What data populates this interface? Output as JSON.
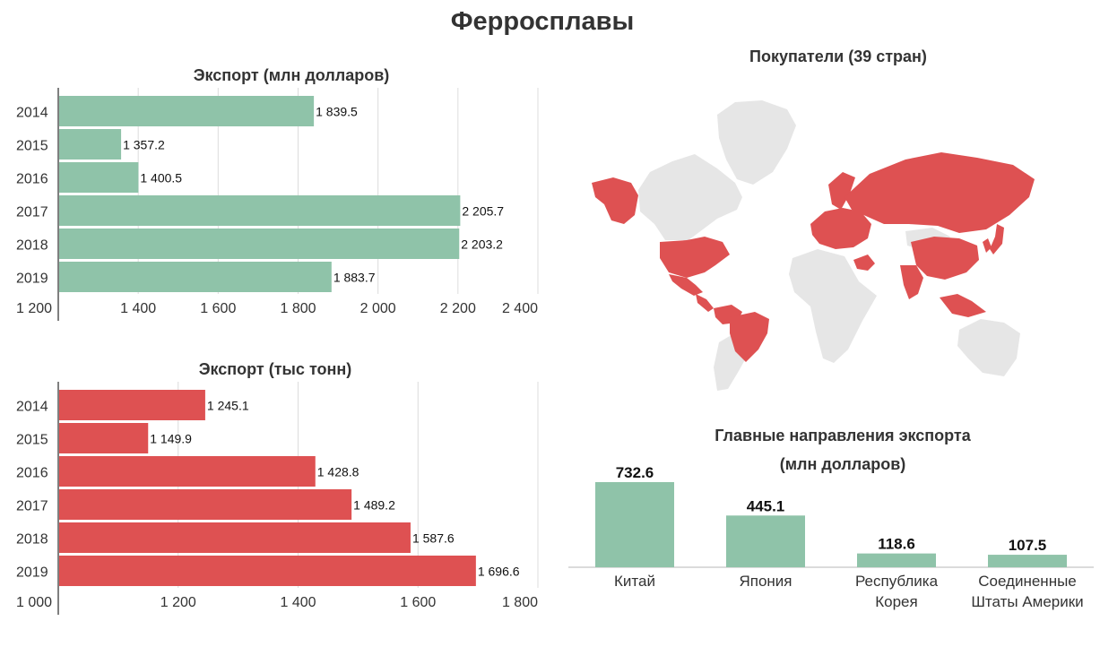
{
  "page": {
    "title": "Ферросплавы"
  },
  "colors": {
    "green": "#8fc3a9",
    "red": "#de5152",
    "land": "#e6e6e6",
    "grid": "#dcdcdc",
    "axis": "#555555"
  },
  "chart_data": [
    {
      "id": "export-value",
      "type": "bar",
      "orientation": "horizontal",
      "title": "Экспорт (млн долларов)",
      "categories": [
        "2014",
        "2015",
        "2016",
        "2017",
        "2018",
        "2019"
      ],
      "values": [
        1839.5,
        1357.2,
        1400.5,
        2205.7,
        2203.2,
        1883.7
      ],
      "value_labels": [
        "1 839.5",
        "1 357.2",
        "1 400.5",
        "2 205.7",
        "2 203.2",
        "1 883.7"
      ],
      "xlim": [
        1200,
        2400
      ],
      "xticks": [
        1200,
        1400,
        1600,
        1800,
        2000,
        2200,
        2400
      ],
      "xtick_labels": [
        "1 200",
        "1 400",
        "1 600",
        "1 800",
        "2 000",
        "2 200",
        "2 400"
      ],
      "color": "#8fc3a9",
      "grid": true
    },
    {
      "id": "export-volume",
      "type": "bar",
      "orientation": "horizontal",
      "title": "Экспорт (тыс тонн)",
      "categories": [
        "2014",
        "2015",
        "2016",
        "2017",
        "2018",
        "2019"
      ],
      "values": [
        1245.1,
        1149.9,
        1428.8,
        1489.2,
        1587.6,
        1696.6
      ],
      "value_labels": [
        "1 245.1",
        "1 149.9",
        "1 428.8",
        "1 489.2",
        "1 587.6",
        "1 696.6"
      ],
      "xlim": [
        1000,
        1800
      ],
      "xticks": [
        1000,
        1200,
        1400,
        1600,
        1800
      ],
      "xtick_labels": [
        "1 000",
        "1 200",
        "1 400",
        "1 600",
        "1 800"
      ],
      "color": "#de5152",
      "grid": true
    },
    {
      "id": "top-destinations",
      "type": "bar",
      "orientation": "vertical",
      "title": "Главные направления экспорта (млн долларов)",
      "title_lines": [
        "Главные направления экспорта",
        "(млн долларов)"
      ],
      "categories": [
        "Китай",
        "Япония",
        "Республика Корея",
        "Соединенные Штаты Америки"
      ],
      "category_lines": [
        [
          "Китай"
        ],
        [
          "Япония"
        ],
        [
          "Республика",
          "Корея"
        ],
        [
          "Соединенные",
          "Штаты Америки"
        ]
      ],
      "values": [
        732.6,
        445.1,
        118.6,
        107.5
      ],
      "value_labels": [
        "732.6",
        "445.1",
        "118.6",
        "107.5"
      ],
      "ylim": [
        0,
        732.6
      ],
      "color": "#8fc3a9",
      "grid": false
    }
  ],
  "map": {
    "title": "Покупатели (39 стран)",
    "buyer_color": "#de5152",
    "land_color": "#e6e6e6",
    "regions": [
      {
        "name": "greenland",
        "buyer": false
      },
      {
        "name": "canada",
        "buyer": false
      },
      {
        "name": "alaska",
        "buyer": true
      },
      {
        "name": "usa",
        "buyer": true
      },
      {
        "name": "mexico",
        "buyer": true
      },
      {
        "name": "central-america",
        "buyer": true
      },
      {
        "name": "colombia-venezuela",
        "buyer": true
      },
      {
        "name": "brazil",
        "buyer": true
      },
      {
        "name": "south-america-other",
        "buyer": false
      },
      {
        "name": "europe",
        "buyer": true
      },
      {
        "name": "scandinavia",
        "buyer": true
      },
      {
        "name": "russia",
        "buyer": true
      },
      {
        "name": "africa",
        "buyer": false
      },
      {
        "name": "middle-east",
        "buyer": true
      },
      {
        "name": "kazakhstan",
        "buyer": false
      },
      {
        "name": "china",
        "buyer": true
      },
      {
        "name": "india",
        "buyer": true
      },
      {
        "name": "japan",
        "buyer": true
      },
      {
        "name": "korea",
        "buyer": true
      },
      {
        "name": "southeast-asia",
        "buyer": true
      },
      {
        "name": "australia",
        "buyer": false
      }
    ]
  }
}
